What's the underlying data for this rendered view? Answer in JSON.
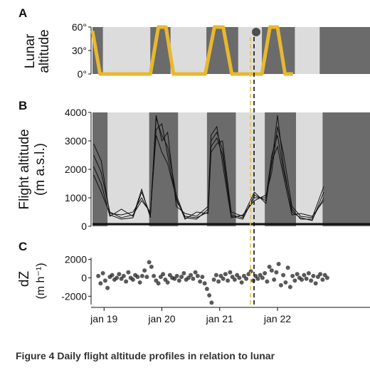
{
  "caption": "Figure 4 Daily flight altitude profiles in relation to lunar",
  "chart_data": [
    {
      "panel": "A",
      "type": "line",
      "ylabel": "Lunar altitude",
      "ylim": [
        0,
        60
      ],
      "yticks": [
        "0°",
        "30°",
        "60°"
      ],
      "xlim": [
        0,
        4.8
      ],
      "night_bands": [
        [
          0,
          0.18
        ],
        [
          1.0,
          1.35
        ],
        [
          1.97,
          2.52
        ],
        [
          2.93,
          3.5
        ],
        [
          3.93,
          4.8
        ]
      ],
      "series": [
        {
          "color": "#e8b82e",
          "x": [
            0,
            0.13,
            1.0,
            1.14,
            1.27,
            1.4,
            1.95,
            2.11,
            2.26,
            2.41,
            2.93,
            3.07,
            3.2,
            3.33,
            3.47
          ],
          "y": [
            55,
            0,
            0,
            60,
            60,
            0,
            0,
            60,
            60,
            0,
            0,
            60,
            60,
            0,
            0
          ]
        }
      ],
      "grid": false
    },
    {
      "panel": "B",
      "type": "line",
      "ylabel": "Flight altitude",
      "ylabel2": "(m a.s.l.)",
      "ylim": [
        0,
        4000
      ],
      "yticks": [
        0,
        1000,
        2000,
        3000,
        4000
      ],
      "xlim": [
        0,
        4.8
      ],
      "night_bands": [
        [
          0,
          0.26
        ],
        [
          0.98,
          1.48
        ],
        [
          1.98,
          2.48
        ],
        [
          2.98,
          3.52
        ],
        [
          3.98,
          4.8
        ]
      ],
      "series": [
        {
          "name": "",
          "x": [
            0.02,
            0.15,
            0.3,
            0.5,
            0.7,
            0.85,
            1.0,
            1.1,
            1.2,
            1.3,
            1.45,
            1.6,
            1.8,
            2.0,
            2.05,
            2.15,
            2.25,
            2.4,
            2.6,
            2.8,
            3.0,
            3.1,
            3.2,
            3.3,
            3.45,
            3.6,
            3.8,
            4.0
          ],
          "y": [
            2900,
            2300,
            400,
            250,
            300,
            1200,
            400,
            3800,
            3200,
            2800,
            1100,
            300,
            250,
            600,
            3000,
            3300,
            2700,
            350,
            250,
            1100,
            900,
            2200,
            3900,
            2200,
            500,
            300,
            200,
            1200
          ]
        },
        {
          "name": "",
          "x": [
            0.02,
            0.15,
            0.3,
            0.5,
            0.7,
            0.85,
            1.0,
            1.1,
            1.2,
            1.3,
            1.45,
            1.6,
            1.8,
            2.0,
            2.05,
            2.15,
            2.25,
            2.4,
            2.6,
            2.8,
            3.0,
            3.1,
            3.2,
            3.3,
            3.45,
            3.6,
            3.8,
            4.0
          ],
          "y": [
            2500,
            1900,
            500,
            300,
            400,
            900,
            500,
            3400,
            3600,
            2500,
            900,
            350,
            300,
            500,
            2800,
            3100,
            2500,
            400,
            300,
            1000,
            1000,
            2500,
            3200,
            2000,
            600,
            250,
            250,
            1000
          ]
        },
        {
          "name": "",
          "x": [
            0.02,
            0.15,
            0.3,
            0.5,
            0.7,
            0.85,
            1.0,
            1.1,
            1.2,
            1.3,
            1.45,
            1.6,
            1.8,
            2.0,
            2.05,
            2.15,
            2.25,
            2.4,
            2.6,
            2.8,
            3.0,
            3.1,
            3.2,
            3.3,
            3.45,
            3.6,
            3.8,
            4.0
          ],
          "y": [
            2100,
            1500,
            350,
            600,
            350,
            1300,
            300,
            3900,
            3000,
            3300,
            700,
            450,
            350,
            700,
            3200,
            3500,
            2200,
            300,
            400,
            900,
            1100,
            1900,
            3500,
            2600,
            700,
            350,
            300,
            1400
          ]
        },
        {
          "name": "",
          "x": [
            0.02,
            0.15,
            0.3,
            0.5,
            0.7,
            0.85,
            1.0,
            1.1,
            1.2,
            1.3,
            1.45,
            1.6,
            1.8,
            2.0,
            2.05,
            2.15,
            2.25,
            2.4,
            2.6,
            2.8,
            3.0,
            3.1,
            3.2,
            3.3,
            3.45,
            3.6,
            3.8,
            4.0
          ],
          "y": [
            1800,
            1200,
            450,
            400,
            500,
            1000,
            450,
            3200,
            2600,
            2200,
            1000,
            250,
            500,
            450,
            2600,
            2900,
            3000,
            500,
            350,
            1200,
            800,
            2300,
            2800,
            1800,
            400,
            450,
            350,
            900
          ]
        }
      ],
      "grid": false
    },
    {
      "panel": "C",
      "type": "scatter",
      "ylabel": "dZ",
      "ylabel2": "(m h⁻¹)",
      "ylim": [
        -2900,
        2200
      ],
      "yticks": [
        -2000,
        0,
        2000
      ],
      "xlim": [
        0,
        4.8
      ],
      "xticks": [
        "jan 19",
        "jan 20",
        "jan 21",
        "jan 22"
      ],
      "xtick_positions": [
        0.2,
        1.2,
        2.2,
        3.2
      ],
      "points_x": [
        0.1,
        0.14,
        0.18,
        0.22,
        0.26,
        0.3,
        0.34,
        0.38,
        0.42,
        0.46,
        0.5,
        0.54,
        0.58,
        0.62,
        0.66,
        0.7,
        0.74,
        0.78,
        0.82,
        0.86,
        0.9,
        0.94,
        0.98,
        1.02,
        1.06,
        1.1,
        1.14,
        1.18,
        1.22,
        1.26,
        1.3,
        1.34,
        1.38,
        1.42,
        1.46,
        1.5,
        1.54,
        1.58,
        1.62,
        1.66,
        1.7,
        1.74,
        1.78,
        1.82,
        1.86,
        1.9,
        1.94,
        1.98,
        2.02,
        2.06,
        2.1,
        2.14,
        2.18,
        2.22,
        2.26,
        2.3,
        2.34,
        2.38,
        2.42,
        2.46,
        2.5,
        2.54,
        2.58,
        2.62,
        2.66,
        2.7,
        2.74,
        2.78,
        2.82,
        2.86,
        2.9,
        2.94,
        2.98,
        3.02,
        3.06,
        3.1,
        3.14,
        3.18,
        3.22,
        3.26,
        3.3,
        3.34,
        3.38,
        3.42,
        3.46,
        3.5,
        3.54,
        3.58,
        3.62,
        3.66,
        3.7,
        3.74,
        3.78,
        3.82,
        3.86,
        3.9,
        3.94,
        3.98,
        4.02,
        4.06
      ],
      "points_y": [
        200,
        -600,
        500,
        -300,
        -1100,
        100,
        300,
        -200,
        0,
        400,
        -100,
        200,
        -400,
        600,
        0,
        -200,
        300,
        100,
        -500,
        200,
        800,
        100,
        1700,
        1200,
        200,
        -300,
        -600,
        100,
        400,
        -200,
        -500,
        300,
        0,
        -100,
        200,
        -300,
        100,
        500,
        -200,
        0,
        300,
        -100,
        600,
        200,
        -400,
        100,
        -600,
        -1200,
        -1900,
        -2700,
        -200,
        300,
        -400,
        200,
        -100,
        400,
        -300,
        600,
        100,
        -200,
        300,
        0,
        -500,
        200,
        -100,
        400,
        700,
        -300,
        200,
        -100,
        300,
        0,
        500,
        -400,
        1200,
        800,
        -200,
        600,
        1500,
        -800,
        300,
        -500,
        1100,
        -1000,
        200,
        -300,
        400,
        0,
        -200,
        300,
        -100,
        500,
        -300,
        200,
        -600,
        100,
        400,
        -200,
        300,
        0
      ],
      "grid": false
    }
  ]
}
